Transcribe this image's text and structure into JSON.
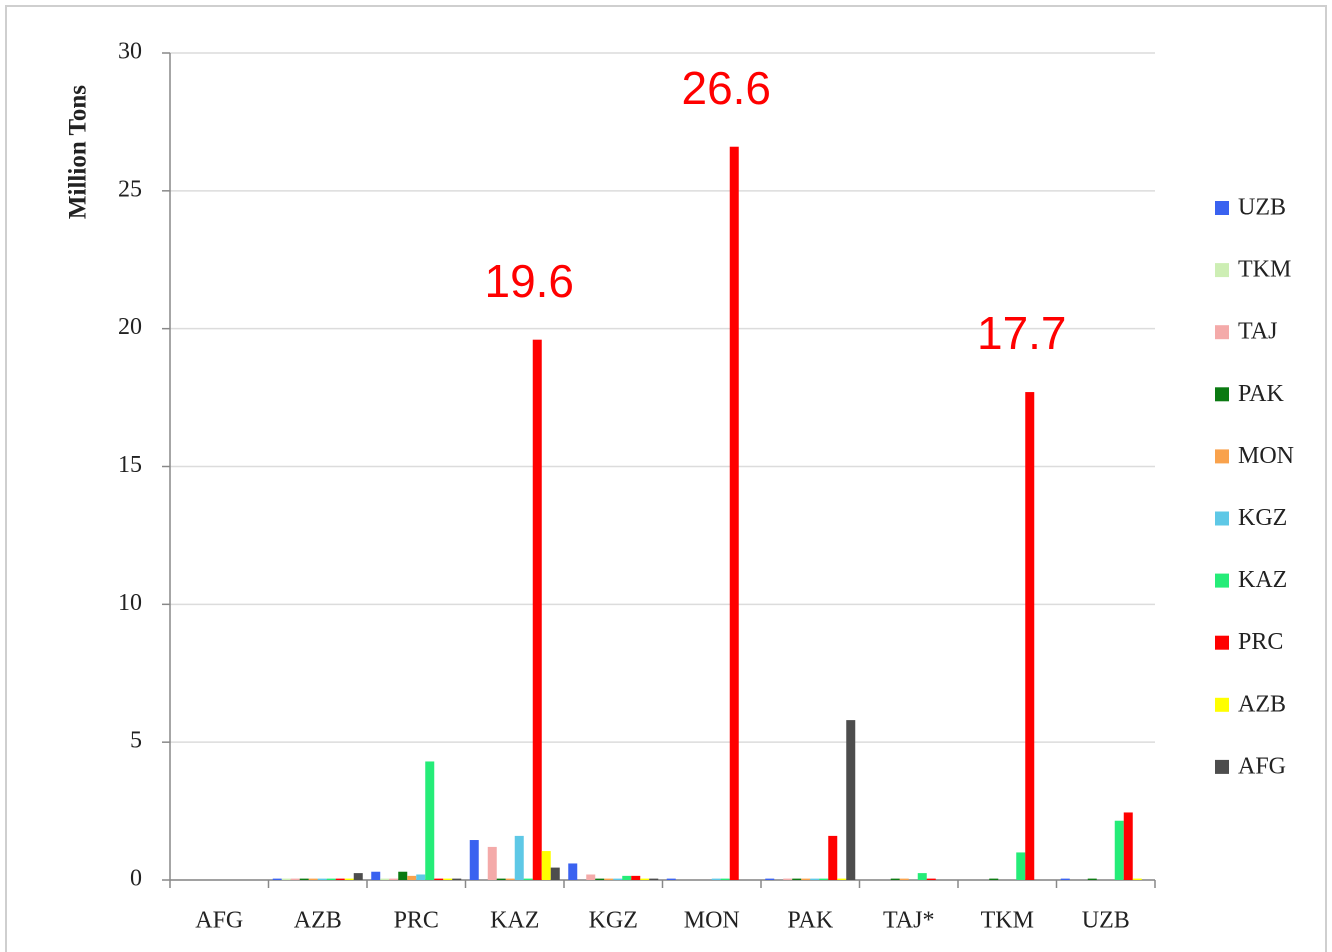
{
  "chart_data": {
    "type": "bar",
    "y_label": "Million Tons",
    "categories": [
      "AFG",
      "AZB",
      "PRC",
      "KAZ",
      "KGZ",
      "MON",
      "PAK",
      "TAJ*",
      "TKM",
      "UZB"
    ],
    "series": [
      {
        "name": "UZB",
        "color": "#3a62f0",
        "values": [
          0,
          0.05,
          0.3,
          1.45,
          0.6,
          0.05,
          0.05,
          0,
          0,
          0.05
        ]
      },
      {
        "name": "TKM",
        "color": "#cdeeb4",
        "values": [
          0,
          0.05,
          0.05,
          0,
          0,
          0,
          0,
          0,
          0,
          0
        ]
      },
      {
        "name": "TAJ",
        "color": "#f4aaa9",
        "values": [
          0,
          0.05,
          0.05,
          1.2,
          0.2,
          0,
          0.05,
          0,
          0,
          0
        ]
      },
      {
        "name": "PAK",
        "color": "#0b7a12",
        "values": [
          0,
          0.05,
          0.3,
          0.05,
          0.05,
          0,
          0.05,
          0.05,
          0.05,
          0.05
        ]
      },
      {
        "name": "MON",
        "color": "#f9a24c",
        "values": [
          0,
          0.05,
          0.15,
          0.05,
          0.05,
          0,
          0.05,
          0.05,
          0,
          0
        ]
      },
      {
        "name": "KGZ",
        "color": "#5ec8e6",
        "values": [
          0,
          0.05,
          0.2,
          1.6,
          0.05,
          0.05,
          0.05,
          0,
          0,
          0
        ]
      },
      {
        "name": "KAZ",
        "color": "#25ec78",
        "values": [
          0,
          0.05,
          4.3,
          0.05,
          0.15,
          0.05,
          0.05,
          0.25,
          1.0,
          2.15
        ]
      },
      {
        "name": "PRC",
        "color": "#ff0000",
        "values": [
          0,
          0.05,
          0.05,
          19.6,
          0.15,
          26.6,
          1.6,
          0.05,
          17.7,
          2.45
        ],
        "value_labels": [
          null,
          null,
          null,
          "19.6",
          null,
          "26.6",
          null,
          null,
          "17.7",
          null
        ]
      },
      {
        "name": "AZB",
        "color": "#ffff00",
        "values": [
          0,
          0.05,
          0.05,
          1.05,
          0.05,
          0,
          0.05,
          0,
          0,
          0.05
        ]
      },
      {
        "name": "AFG",
        "color": "#4d4d4d",
        "values": [
          0,
          0.25,
          0.05,
          0.45,
          0.05,
          0,
          5.8,
          0,
          0,
          0
        ]
      }
    ],
    "ylim": [
      0,
      30
    ],
    "yticks": [
      0,
      5,
      10,
      15,
      20,
      25,
      30
    ],
    "grid": true,
    "legend": "right"
  }
}
